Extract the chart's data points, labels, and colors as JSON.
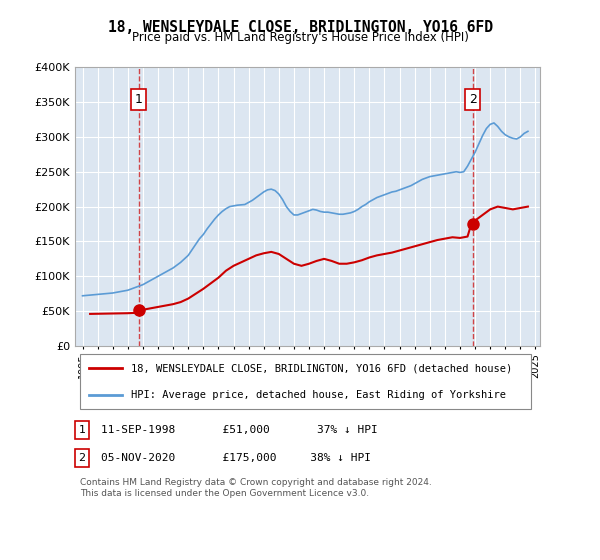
{
  "title": "18, WENSLEYDALE CLOSE, BRIDLINGTON, YO16 6FD",
  "subtitle": "Price paid vs. HM Land Registry's House Price Index (HPI)",
  "legend_line1": "18, WENSLEYDALE CLOSE, BRIDLINGTON, YO16 6FD (detached house)",
  "legend_line2": "HPI: Average price, detached house, East Riding of Yorkshire",
  "footer": "Contains HM Land Registry data © Crown copyright and database right 2024.\nThis data is licensed under the Open Government Licence v3.0.",
  "annotation1": "1   11-SEP-1998       £51,000       37% ↓ HPI",
  "annotation2": "2   05-NOV-2020       £175,000     38% ↓ HPI",
  "bg_color": "#dce6f1",
  "plot_bg_color": "#dce6f1",
  "red_color": "#cc0000",
  "blue_color": "#5b9bd5",
  "ylim": [
    0,
    400000
  ],
  "yticks": [
    0,
    50000,
    100000,
    150000,
    200000,
    250000,
    300000,
    350000,
    400000
  ],
  "ytick_labels": [
    "£0",
    "£50K",
    "£100K",
    "£150K",
    "£200K",
    "£250K",
    "£300K",
    "£350K",
    "£400K"
  ],
  "hpi_years": [
    1995.0,
    1995.25,
    1995.5,
    1995.75,
    1996.0,
    1996.25,
    1996.5,
    1996.75,
    1997.0,
    1997.25,
    1997.5,
    1997.75,
    1998.0,
    1998.25,
    1998.5,
    1998.75,
    1999.0,
    1999.25,
    1999.5,
    1999.75,
    2000.0,
    2000.25,
    2000.5,
    2000.75,
    2001.0,
    2001.25,
    2001.5,
    2001.75,
    2002.0,
    2002.25,
    2002.5,
    2002.75,
    2003.0,
    2003.25,
    2003.5,
    2003.75,
    2004.0,
    2004.25,
    2004.5,
    2004.75,
    2005.0,
    2005.25,
    2005.5,
    2005.75,
    2006.0,
    2006.25,
    2006.5,
    2006.75,
    2007.0,
    2007.25,
    2007.5,
    2007.75,
    2008.0,
    2008.25,
    2008.5,
    2008.75,
    2009.0,
    2009.25,
    2009.5,
    2009.75,
    2010.0,
    2010.25,
    2010.5,
    2010.75,
    2011.0,
    2011.25,
    2011.5,
    2011.75,
    2012.0,
    2012.25,
    2012.5,
    2012.75,
    2013.0,
    2013.25,
    2013.5,
    2013.75,
    2014.0,
    2014.25,
    2014.5,
    2014.75,
    2015.0,
    2015.25,
    2015.5,
    2015.75,
    2016.0,
    2016.25,
    2016.5,
    2016.75,
    2017.0,
    2017.25,
    2017.5,
    2017.75,
    2018.0,
    2018.25,
    2018.5,
    2018.75,
    2019.0,
    2019.25,
    2019.5,
    2019.75,
    2020.0,
    2020.25,
    2020.5,
    2020.75,
    2021.0,
    2021.25,
    2021.5,
    2021.75,
    2022.0,
    2022.25,
    2022.5,
    2022.75,
    2023.0,
    2023.25,
    2023.5,
    2023.75,
    2024.0,
    2024.25,
    2024.5
  ],
  "hpi_values": [
    72000,
    72500,
    73000,
    73500,
    74000,
    74500,
    75000,
    75500,
    76000,
    77000,
    78000,
    79000,
    80000,
    82000,
    84000,
    86000,
    88000,
    91000,
    94000,
    97000,
    100000,
    103000,
    106000,
    109000,
    112000,
    116000,
    120000,
    125000,
    130000,
    138000,
    146000,
    154000,
    160000,
    168000,
    175000,
    182000,
    188000,
    193000,
    197000,
    200000,
    201000,
    202000,
    202500,
    203000,
    206000,
    209000,
    213000,
    217000,
    221000,
    224000,
    225000,
    223000,
    218000,
    210000,
    200000,
    193000,
    188000,
    188000,
    190000,
    192000,
    194000,
    196000,
    195000,
    193000,
    192000,
    192000,
    191000,
    190000,
    189000,
    189000,
    190000,
    191000,
    193000,
    196000,
    200000,
    203000,
    207000,
    210000,
    213000,
    215000,
    217000,
    219000,
    221000,
    222000,
    224000,
    226000,
    228000,
    230000,
    233000,
    236000,
    239000,
    241000,
    243000,
    244000,
    245000,
    246000,
    247000,
    248000,
    249000,
    250000,
    249000,
    250000,
    258000,
    268000,
    278000,
    290000,
    302000,
    312000,
    318000,
    320000,
    315000,
    308000,
    303000,
    300000,
    298000,
    297000,
    300000,
    305000,
    308000
  ],
  "prop_years": [
    1995.5,
    1996.0,
    1996.5,
    1997.0,
    1997.5,
    1998.0,
    1998.5,
    1998.75,
    1999.0,
    1999.5,
    2000.0,
    2000.5,
    2001.0,
    2001.5,
    2002.0,
    2002.5,
    2003.0,
    2003.5,
    2004.0,
    2004.5,
    2005.0,
    2005.5,
    2006.0,
    2006.5,
    2007.0,
    2007.5,
    2008.0,
    2008.5,
    2009.0,
    2009.5,
    2010.0,
    2010.5,
    2011.0,
    2011.5,
    2012.0,
    2012.5,
    2013.0,
    2013.5,
    2014.0,
    2014.5,
    2015.0,
    2015.5,
    2016.0,
    2016.5,
    2017.0,
    2017.5,
    2018.0,
    2018.5,
    2019.0,
    2019.5,
    2020.0,
    2020.5,
    2020.75,
    2021.0,
    2021.5,
    2022.0,
    2022.5,
    2023.0,
    2023.5,
    2024.0,
    2024.5
  ],
  "prop_values": [
    46000,
    46200,
    46400,
    46600,
    46800,
    47000,
    47500,
    51000,
    52000,
    54000,
    56000,
    58000,
    60000,
    63000,
    68000,
    75000,
    82000,
    90000,
    98000,
    108000,
    115000,
    120000,
    125000,
    130000,
    133000,
    135000,
    132000,
    125000,
    118000,
    115000,
    118000,
    122000,
    125000,
    122000,
    118000,
    118000,
    120000,
    123000,
    127000,
    130000,
    132000,
    134000,
    137000,
    140000,
    143000,
    146000,
    149000,
    152000,
    154000,
    156000,
    155000,
    157000,
    175000,
    180000,
    188000,
    196000,
    200000,
    198000,
    196000,
    198000,
    200000
  ],
  "sale1_year": 1998.71,
  "sale1_value": 51000,
  "sale2_year": 2020.84,
  "sale2_value": 175000,
  "vline1_year": 1998.71,
  "vline2_year": 2020.84,
  "xlim_left": 1994.5,
  "xlim_right": 2025.3
}
